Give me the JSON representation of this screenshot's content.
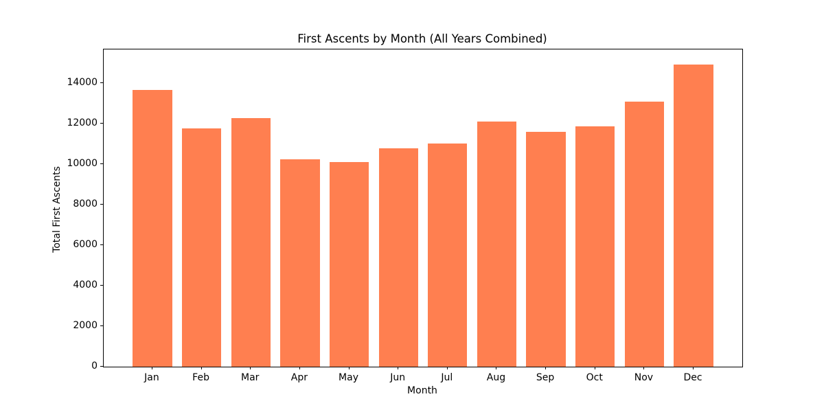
{
  "chart_data": {
    "type": "bar",
    "title": "First Ascents by Month (All Years Combined)",
    "xlabel": "Month",
    "ylabel": "Total First Ascents",
    "categories": [
      "Jan",
      "Feb",
      "Mar",
      "Apr",
      "May",
      "Jun",
      "Jul",
      "Aug",
      "Sep",
      "Oct",
      "Nov",
      "Dec"
    ],
    "values": [
      13640,
      11740,
      12270,
      10230,
      10080,
      10770,
      11010,
      12080,
      11600,
      11850,
      13070,
      14890
    ],
    "yticks": [
      0,
      2000,
      4000,
      6000,
      8000,
      10000,
      12000,
      14000
    ],
    "ylim": [
      0,
      15650
    ],
    "xlim": [
      -0.99,
      11.99
    ],
    "bar_width_fraction": 0.8,
    "bar_color": "#FF7F50",
    "axis_color": "#000000",
    "background_color": "#ffffff",
    "grid": false,
    "legend": null
  }
}
